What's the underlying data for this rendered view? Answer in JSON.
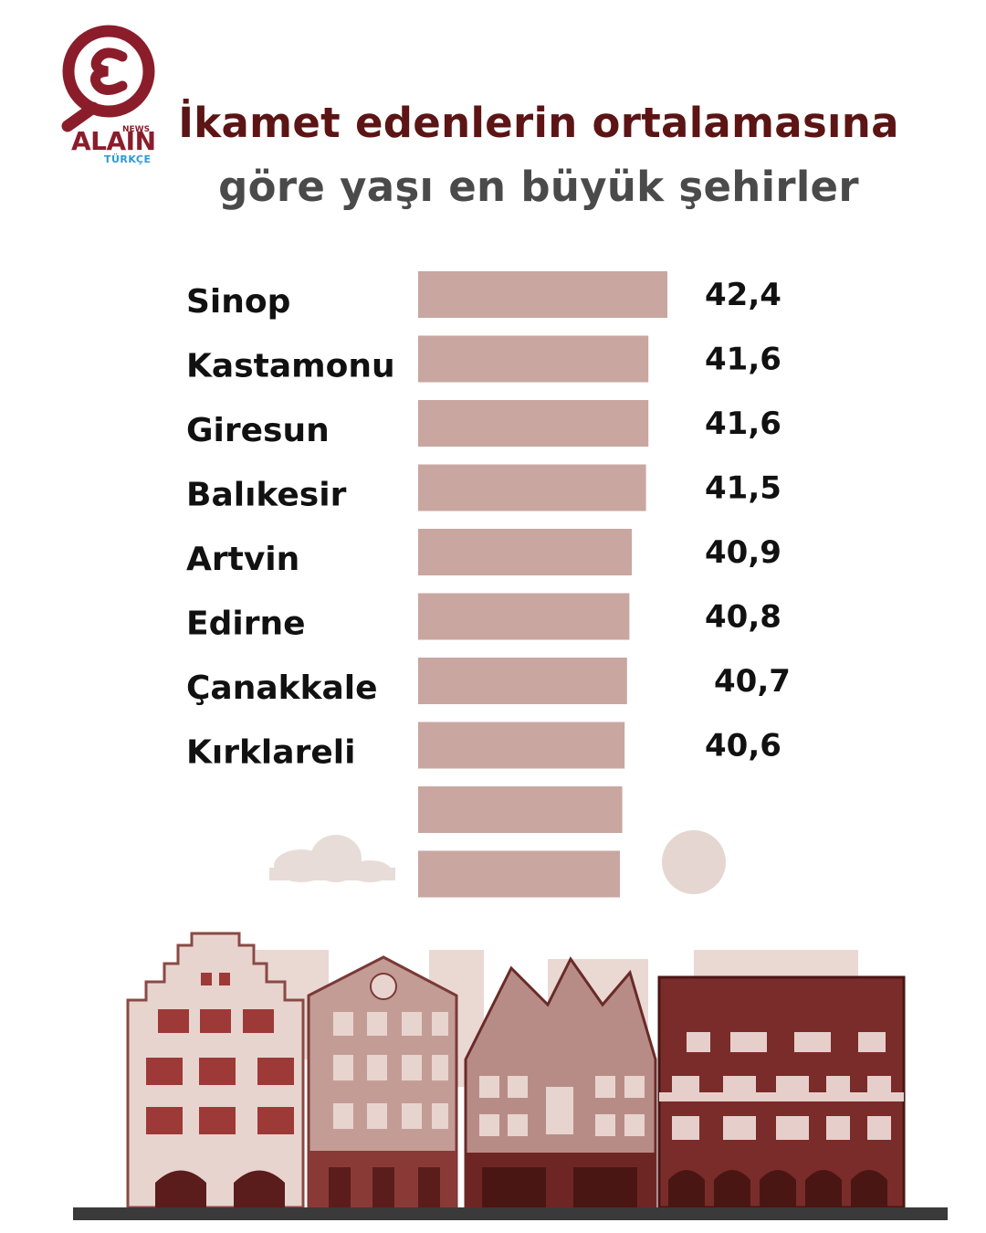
{
  "brand": {
    "name": "ALAIN",
    "tag": "NEWS",
    "sub": "TÜRKÇE",
    "color": "#8b1d2b",
    "sub_color": "#2b9ad6"
  },
  "colors": {
    "title_primary": "#5c1414",
    "title_secondary": "#4a4a4a",
    "bar": "#c9a6a0",
    "building_dark": "#7a2a28",
    "building_mid": "#b38a85",
    "building_light": "#e6cfca"
  },
  "chart_data": {
    "type": "bar",
    "orientation": "horizontal",
    "title": "İkamet edenlerin ortalamasına",
    "subtitle": "göre yaşı en büyük şehirler",
    "categories": [
      "Sinop",
      "Kastamonu",
      "Giresun",
      "Balıkesir",
      "Artvin",
      "Edirne",
      "Çanakkale",
      "Kırklareli"
    ],
    "values": [
      42.4,
      41.6,
      41.6,
      41.5,
      40.9,
      40.8,
      40.7,
      40.6
    ],
    "value_labels": [
      "42,4",
      "41,6",
      "41,6",
      "41,5",
      "40,9",
      "40,8",
      "40,7",
      "40,6"
    ],
    "unlabeled_bars": [
      40.5,
      40.4
    ],
    "xlabel": "",
    "ylabel": "",
    "legend": "none",
    "grid": false
  }
}
